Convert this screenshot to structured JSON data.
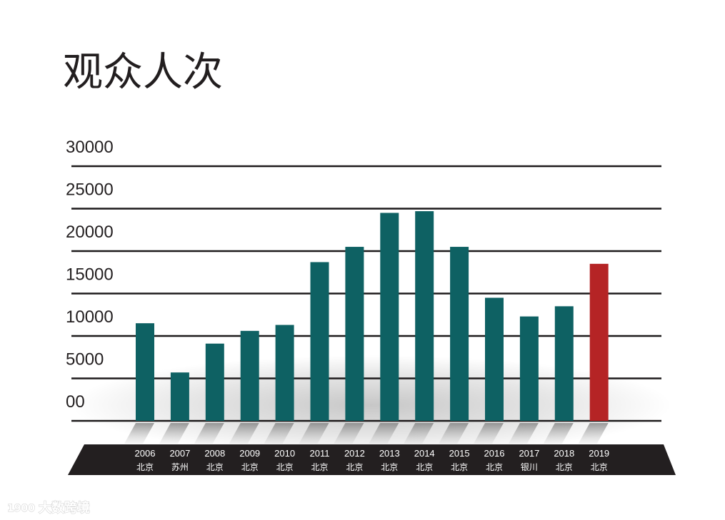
{
  "colors": {
    "bar": "#0e6163",
    "highlight": "#b52425",
    "grid": "#1d1a1b",
    "base": "#231f20"
  },
  "watermark": {
    "text": "大数跨境",
    "logo": "1900"
  },
  "chart_data": {
    "type": "bar",
    "title": "观众人次",
    "xlabel": "",
    "ylabel": "",
    "ylim": [
      0,
      30000
    ],
    "yticks": [
      "00",
      "5000",
      "10000",
      "15000",
      "20000",
      "25000",
      "30000"
    ],
    "ytick_values": [
      0,
      5000,
      10000,
      15000,
      20000,
      25000,
      30000
    ],
    "grid": true,
    "legend": "none",
    "categories": [
      "2006",
      "2007",
      "2008",
      "2009",
      "2010",
      "2011",
      "2012",
      "2013",
      "2014",
      "2015",
      "2016",
      "2017",
      "2018",
      "2019"
    ],
    "locations": [
      "北京",
      "苏州",
      "北京",
      "北京",
      "北京",
      "北京",
      "北京",
      "北京",
      "北京",
      "北京",
      "北京",
      "银川",
      "北京",
      "北京"
    ],
    "values": [
      11500,
      5700,
      9100,
      10600,
      11300,
      18700,
      20500,
      24500,
      24700,
      20500,
      14500,
      12300,
      13500,
      18500
    ],
    "highlight_index": 13
  }
}
